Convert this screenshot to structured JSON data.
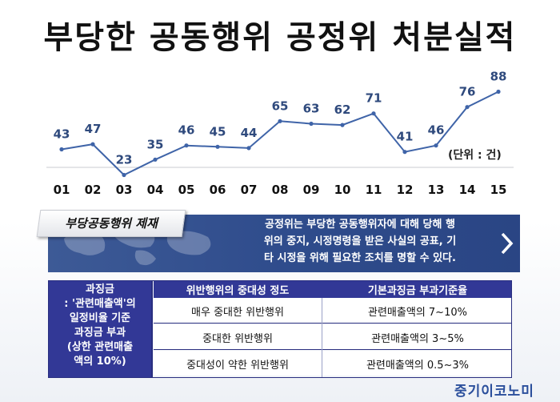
{
  "title": "부당한 공동행위 공정위 처분실적",
  "chart_data": {
    "type": "line",
    "title": "부당한 공동행위 공정위 처분실적",
    "categories": [
      "01",
      "02",
      "03",
      "04",
      "05",
      "06",
      "07",
      "08",
      "09",
      "10",
      "11",
      "12",
      "13",
      "14",
      "15"
    ],
    "values": [
      43,
      47,
      23,
      35,
      46,
      45,
      44,
      65,
      63,
      62,
      71,
      41,
      46,
      76,
      88
    ],
    "unit": "(단위 : 건)",
    "ylim": [
      0,
      100
    ],
    "grid": false,
    "color": "#3f64a8"
  },
  "banner": {
    "tag": "부당공동행위 제재",
    "lines": [
      "공정위는 부당한 공동행위자에 대해 당해 행",
      "위의 중지, 시정명령을 받은 사실의 공표, 기",
      "타 시정을 위해 필요한 조치를 명할 수 있다."
    ],
    "arrow": ">"
  },
  "table": {
    "left_lines": [
      "과징금",
      ": '관련매출액'의",
      "일정비율 기준",
      "과징금 부과",
      "(상한 관련매출",
      "액의 10%)"
    ],
    "headers": [
      "위반행위의 중대성 정도",
      "기본과징금 부과기준율"
    ],
    "rows": [
      [
        "매우 중대한 위반행위",
        "관련매출액의 7~10%"
      ],
      [
        "중대한 위반행위",
        "관련매출액의 3~5%"
      ],
      [
        "중대성이 약한 위반행위",
        "관련매출액의 0.5~3%"
      ]
    ]
  },
  "logo": "중기이코노미"
}
